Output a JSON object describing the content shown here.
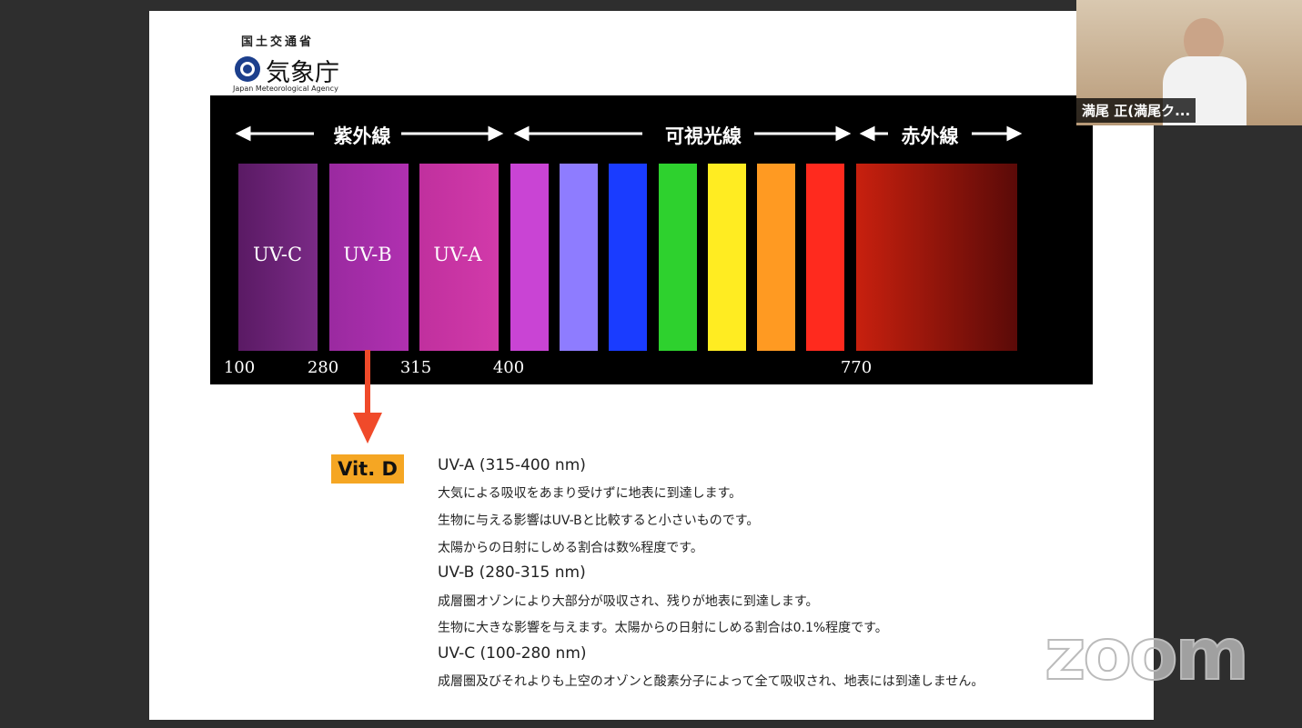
{
  "logo": {
    "ministry": "国土交通省",
    "agency": "気象庁",
    "agency_en": "Japan Meteorological Agency"
  },
  "spectrum": {
    "headings": [
      "紫外線",
      "可視光線",
      "赤外線"
    ],
    "bands": [
      "UV-C",
      "UV-B",
      "UV-A"
    ],
    "wavelengths": [
      "100",
      "280",
      "315",
      "400",
      "770"
    ]
  },
  "callout": "Vit. D",
  "sections": [
    {
      "heading": "UV-A (315-400 nm)",
      "lines": [
        "大気による吸収をあまり受けずに地表に到達します。",
        "生物に与える影響はUV-Bと比較すると小さいものです。",
        "太陽からの日射にしめる割合は数%程度です。"
      ]
    },
    {
      "heading": "UV-B (280-315 nm)",
      "lines": [
        "成層圏オゾンにより大部分が吸収され、残りが地表に到達します。",
        "生物に大きな影響を与えます。太陽からの日射にしめる割合は0.1%程度です。"
      ]
    },
    {
      "heading": "UV-C (100-280 nm)",
      "lines": [
        "成層圏及びそれよりも上空のオゾンと酸素分子によって全て吸収され、地表には到達しません。"
      ]
    }
  ],
  "participant": {
    "name": "満尾 正(満尾ク..."
  },
  "watermark": "zoom"
}
